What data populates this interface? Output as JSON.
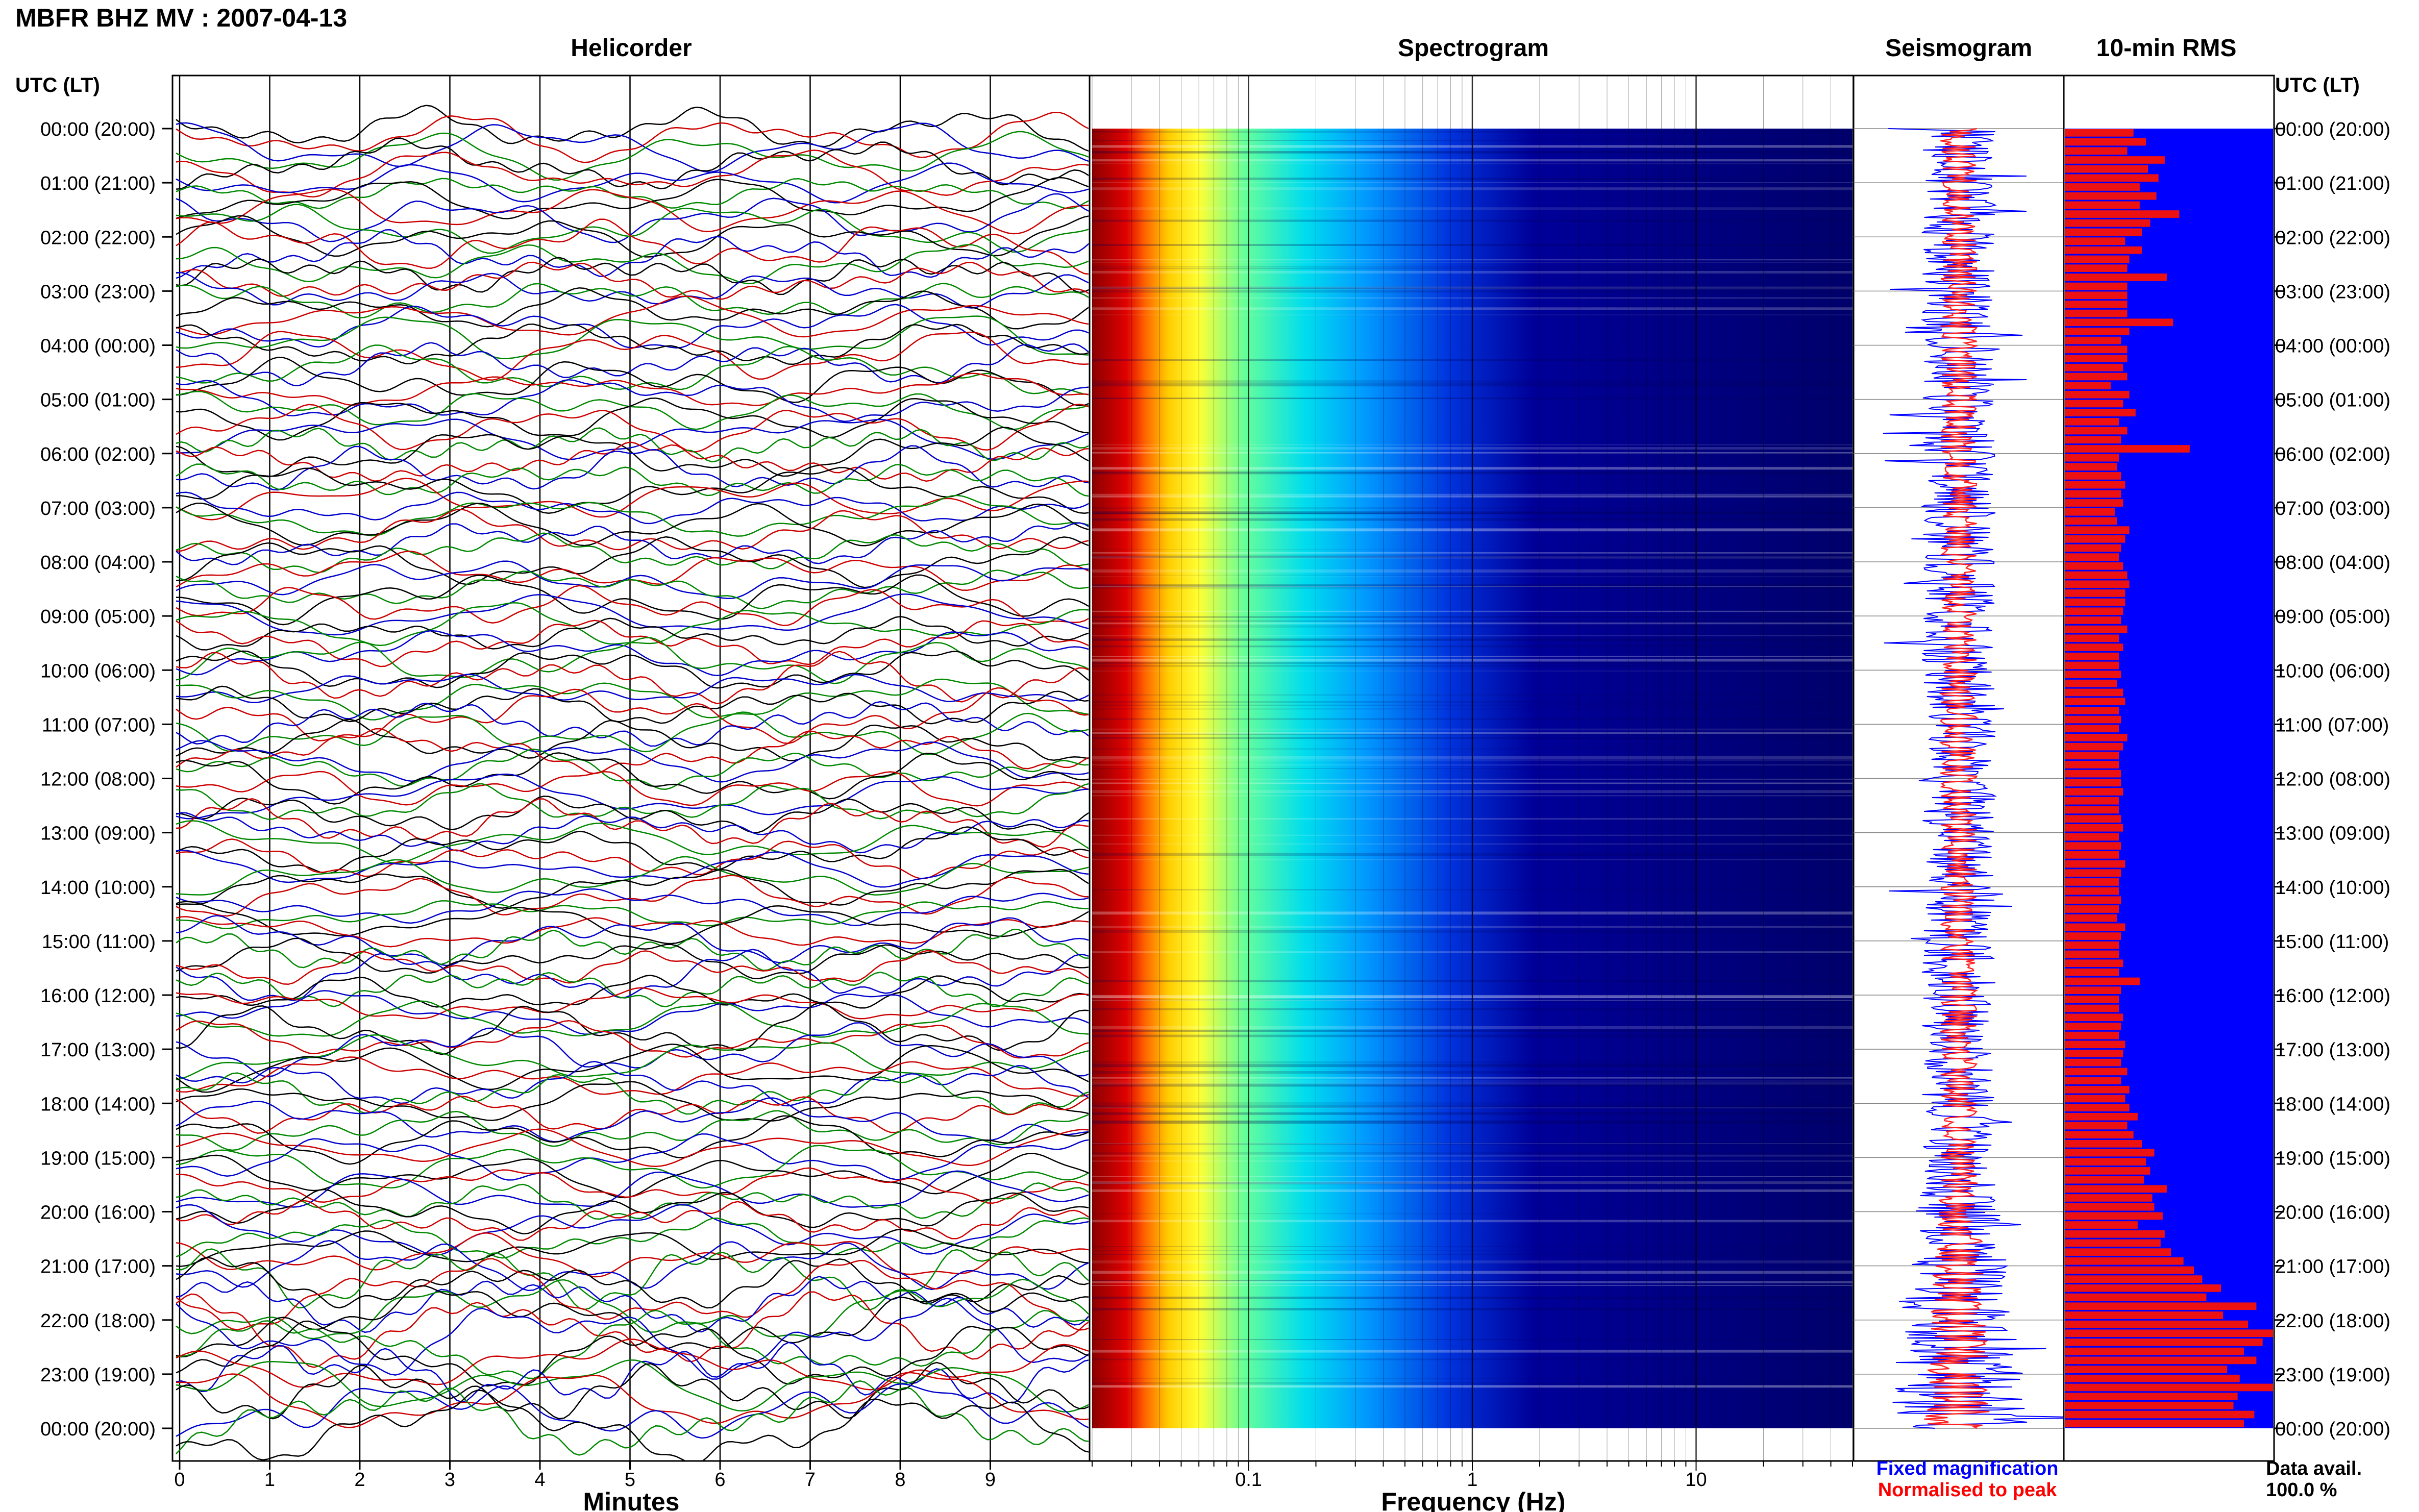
{
  "header": {
    "title": "MBFR BHZ MV : 2007-04-13",
    "utc_label_left": "UTC (LT)",
    "utc_label_right": "UTC (LT)"
  },
  "panels": {
    "helicorder": "Helicorder",
    "spectrogram": "Spectrogram",
    "seismogram": "Seismogram",
    "rms": "10-min RMS"
  },
  "time_labels": [
    "00:00 (20:00)",
    "01:00 (21:00)",
    "02:00 (22:00)",
    "03:00 (23:00)",
    "04:00 (00:00)",
    "05:00 (01:00)",
    "06:00 (02:00)",
    "07:00 (03:00)",
    "08:00 (04:00)",
    "09:00 (05:00)",
    "10:00 (06:00)",
    "11:00 (07:00)",
    "12:00 (08:00)",
    "13:00 (09:00)",
    "14:00 (10:00)",
    "15:00 (11:00)",
    "16:00 (12:00)",
    "17:00 (13:00)",
    "18:00 (14:00)",
    "19:00 (15:00)",
    "20:00 (16:00)",
    "21:00 (17:00)",
    "22:00 (18:00)",
    "23:00 (19:00)",
    "00:00 (20:00)"
  ],
  "helicorder_axis": {
    "label": "Minutes",
    "ticks": [
      "0",
      "1",
      "2",
      "3",
      "4",
      "5",
      "6",
      "7",
      "8",
      "9"
    ],
    "range": [
      0,
      10
    ],
    "trace_colors": [
      "#000000",
      "#cc0000",
      "#0000cc",
      "#008800"
    ]
  },
  "spectrogram_axis": {
    "label": "Frequency (Hz)",
    "scale": "log",
    "ticks": [
      "0.1",
      "1",
      "10"
    ],
    "range": [
      0.02,
      50
    ]
  },
  "legend": {
    "fixed": "Fixed magnification",
    "fixed_color": "#0000ff",
    "normalised": "Normalised to peak",
    "normalised_color": "#ff0000",
    "data_avail_label": "Data avail.",
    "data_avail_value": "100.0 %"
  },
  "chart_data": {
    "type": "bar",
    "title": "10-min RMS",
    "x_unit": "UTC hour",
    "ylim": [
      0,
      1
    ],
    "values": [
      0.33,
      0.39,
      0.3,
      0.48,
      0.4,
      0.45,
      0.36,
      0.44,
      0.36,
      0.55,
      0.41,
      0.37,
      0.29,
      0.37,
      0.31,
      0.3,
      0.49,
      0.3,
      0.3,
      0.3,
      0.3,
      0.52,
      0.31,
      0.27,
      0.3,
      0.3,
      0.28,
      0.3,
      0.22,
      0.31,
      0.28,
      0.34,
      0.26,
      0.3,
      0.27,
      0.6,
      0.26,
      0.25,
      0.27,
      0.29,
      0.27,
      0.28,
      0.24,
      0.25,
      0.31,
      0.29,
      0.27,
      0.26,
      0.28,
      0.3,
      0.31,
      0.29,
      0.29,
      0.28,
      0.27,
      0.3,
      0.26,
      0.28,
      0.26,
      0.26,
      0.27,
      0.25,
      0.28,
      0.29,
      0.26,
      0.27,
      0.26,
      0.3,
      0.28,
      0.26,
      0.26,
      0.27,
      0.27,
      0.28,
      0.26,
      0.26,
      0.27,
      0.28,
      0.26,
      0.27,
      0.26,
      0.29,
      0.27,
      0.26,
      0.26,
      0.27,
      0.26,
      0.25,
      0.29,
      0.27,
      0.26,
      0.26,
      0.28,
      0.26,
      0.36,
      0.27,
      0.26,
      0.26,
      0.28,
      0.27,
      0.26,
      0.29,
      0.28,
      0.27,
      0.3,
      0.27,
      0.31,
      0.29,
      0.31,
      0.35,
      0.3,
      0.33,
      0.37,
      0.43,
      0.39,
      0.41,
      0.38,
      0.49,
      0.42,
      0.43,
      0.47,
      0.35,
      0.48,
      0.46,
      0.51,
      0.57,
      0.62,
      0.66,
      0.75,
      0.68,
      0.92,
      0.76,
      0.88,
      1.0,
      0.95,
      0.86,
      0.92,
      0.78,
      0.84,
      1.0,
      0.83,
      0.81,
      0.91,
      0.86
    ]
  }
}
